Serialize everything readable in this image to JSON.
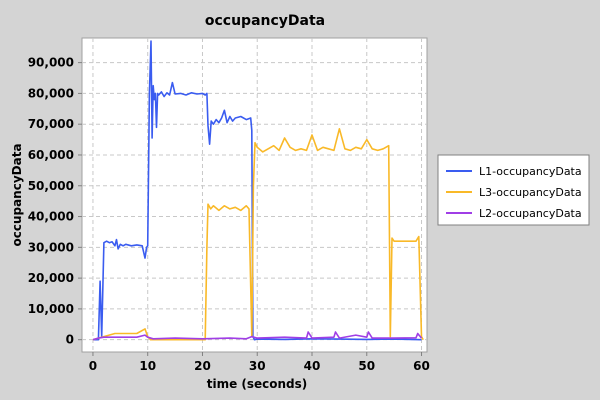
{
  "chart_data": {
    "type": "line",
    "title": "occupancyData",
    "xlabel": "time (seconds)",
    "ylabel": "occupancyData",
    "xlim": [
      -2,
      61
    ],
    "ylim": [
      -4000,
      98000
    ],
    "xticks": [
      0,
      10,
      20,
      30,
      40,
      50,
      60
    ],
    "xtick_labels": [
      "0",
      "10",
      "20",
      "30",
      "40",
      "50",
      "60"
    ],
    "yticks": [
      0,
      10000,
      20000,
      30000,
      40000,
      50000,
      60000,
      70000,
      80000,
      90000
    ],
    "ytick_labels": [
      "0",
      "10,000",
      "20,000",
      "30,000",
      "40,000",
      "50,000",
      "60,000",
      "70,000",
      "80,000",
      "90,000"
    ],
    "grid": true,
    "legend_position": "right",
    "series": [
      {
        "name": "L1-occupancyData",
        "color": "#3a5cf0",
        "x": [
          0,
          1.0,
          1.3,
          1.6,
          2.0,
          2.5,
          3.0,
          3.5,
          4.0,
          4.3,
          4.6,
          5.0,
          5.5,
          6.0,
          7.0,
          8.0,
          9.0,
          9.5,
          9.8,
          10.0,
          10.3,
          10.6,
          10.8,
          11.0,
          11.2,
          11.4,
          11.6,
          11.8,
          12.0,
          12.5,
          13.0,
          13.5,
          14.0,
          14.5,
          15.0,
          16.0,
          17.0,
          18.0,
          19.0,
          20.0,
          20.5,
          20.8,
          21.0,
          21.3,
          21.6,
          22.0,
          22.5,
          23.0,
          23.5,
          24.0,
          24.5,
          25.0,
          25.5,
          26.0,
          27.0,
          28.0,
          28.8,
          29.0,
          29.2,
          29.5,
          30,
          35,
          40,
          45,
          50,
          55,
          60
        ],
        "y": [
          0,
          0,
          19000,
          1000,
          31500,
          32000,
          31500,
          31800,
          30500,
          32500,
          29500,
          31000,
          30500,
          31000,
          30500,
          30800,
          30500,
          26500,
          30000,
          30500,
          80000,
          97000,
          65500,
          82500,
          78000,
          80000,
          69000,
          80000,
          79500,
          80500,
          79000,
          80200,
          79500,
          83500,
          79800,
          80000,
          79500,
          80200,
          79800,
          80000,
          79500,
          80000,
          69500,
          63500,
          71000,
          70000,
          71500,
          70500,
          72000,
          74500,
          70500,
          72500,
          71000,
          72000,
          72500,
          71500,
          72000,
          68000,
          1000,
          0,
          200,
          100,
          300,
          200,
          100,
          200,
          0
        ]
      },
      {
        "name": "L3-occupancyData",
        "color": "#f9b928",
        "x": [
          0,
          1.0,
          4.0,
          8.0,
          9.5,
          10.0,
          10.5,
          20.0,
          20.5,
          20.8,
          21.0,
          21.5,
          22.0,
          23.0,
          24.0,
          25.0,
          26.0,
          27.0,
          28.0,
          28.5,
          29.0,
          29.3,
          29.6,
          30.0,
          31.0,
          32.0,
          33.0,
          34.0,
          35.0,
          36.0,
          37.0,
          38.0,
          39.0,
          40.0,
          41.0,
          42.0,
          43.0,
          44.0,
          45.0,
          46.0,
          47.0,
          48.0,
          49.0,
          50.0,
          51.0,
          52.0,
          53.0,
          54.0,
          54.3,
          54.6,
          55.0,
          56.0,
          57.0,
          58.0,
          59.0,
          59.5,
          60.0,
          60.3
        ],
        "y": [
          0,
          500,
          2000,
          2000,
          3500,
          1000,
          0,
          0,
          0,
          30000,
          44000,
          42500,
          43500,
          42000,
          43500,
          42500,
          43000,
          42000,
          43500,
          42500,
          1000,
          50000,
          64000,
          62500,
          61000,
          62000,
          63000,
          61500,
          65500,
          62500,
          61500,
          62000,
          61500,
          66500,
          61500,
          62500,
          62000,
          61500,
          68500,
          62000,
          61500,
          62500,
          62000,
          65000,
          62000,
          61500,
          62000,
          63000,
          1000,
          33000,
          32000,
          32000,
          32000,
          32000,
          32000,
          33500,
          1000,
          0
        ]
      },
      {
        "name": "L2-occupancyData",
        "color": "#a03ee6",
        "x": [
          0,
          1.0,
          2.0,
          4.0,
          8.0,
          9.5,
          10.0,
          11.0,
          15.0,
          20.0,
          25.0,
          28.0,
          29.0,
          30.0,
          35.0,
          39.0,
          39.3,
          40.0,
          44.0,
          44.3,
          45.0,
          48.0,
          50.0,
          50.3,
          51.0,
          55.0,
          59.0,
          59.3,
          60.0
        ],
        "y": [
          0,
          500,
          800,
          800,
          800,
          1500,
          800,
          300,
          500,
          300,
          500,
          300,
          1000,
          500,
          800,
          500,
          2500,
          500,
          800,
          2500,
          500,
          1500,
          800,
          2500,
          500,
          500,
          600,
          2000,
          500
        ]
      }
    ]
  }
}
